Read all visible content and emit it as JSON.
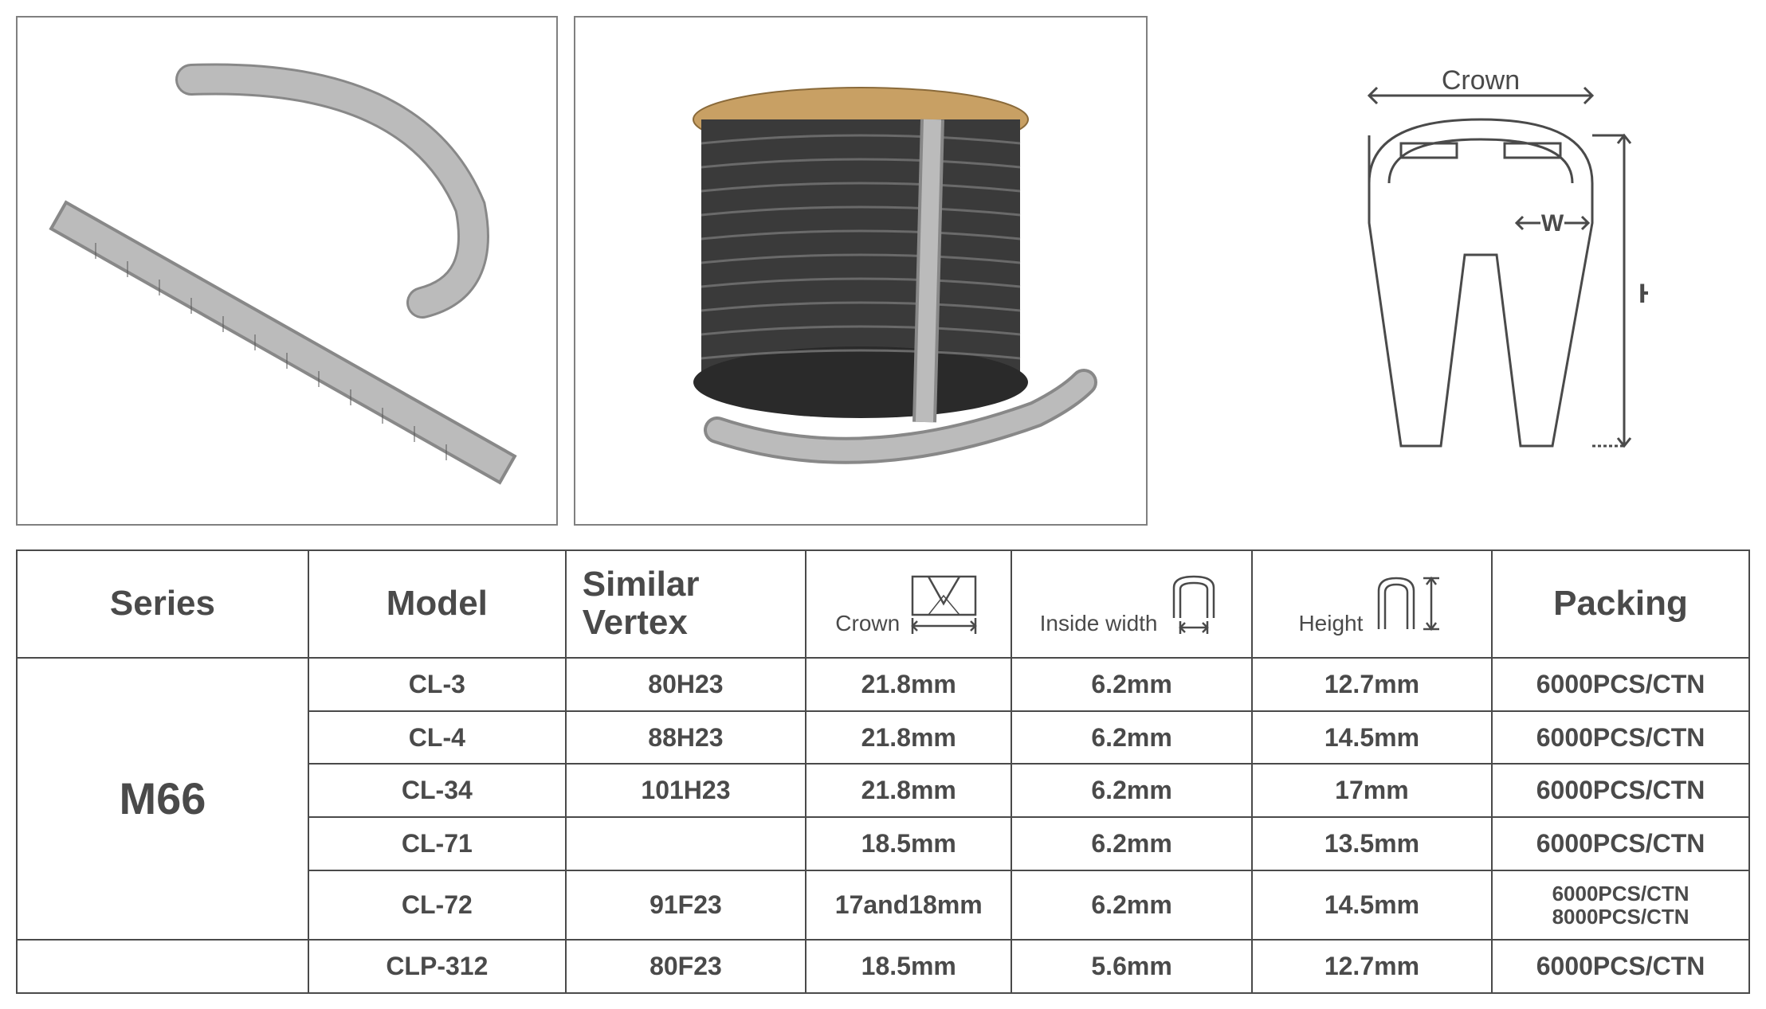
{
  "diagram": {
    "crown_label": "Crown",
    "w_label": "W",
    "h_label": "H",
    "line_color": "#4a4a4a",
    "line_width": 3
  },
  "header_icons": {
    "crown_label": "Crown",
    "inside_width_label": "Inside width",
    "height_label": "Height"
  },
  "table": {
    "columns": [
      "Series",
      "Model",
      "Similar Vertex",
      "Crown",
      "Inside width",
      "Height",
      "Packing"
    ],
    "series_groups": [
      {
        "series": "M66",
        "rows": [
          {
            "model": "CL-3",
            "vertex": "80H23",
            "crown": "21.8mm",
            "iw": "6.2mm",
            "height": "12.7mm",
            "packing": "6000PCS/CTN"
          },
          {
            "model": "CL-4",
            "vertex": "88H23",
            "crown": "21.8mm",
            "iw": "6.2mm",
            "height": "14.5mm",
            "packing": "6000PCS/CTN"
          },
          {
            "model": "CL-34",
            "vertex": "101H23",
            "crown": "21.8mm",
            "iw": "6.2mm",
            "height": "17mm",
            "packing": "6000PCS/CTN"
          },
          {
            "model": "CL-71",
            "vertex": "",
            "crown": "18.5mm",
            "iw": "6.2mm",
            "height": "13.5mm",
            "packing": "6000PCS/CTN"
          },
          {
            "model": "CL-72",
            "vertex": "91F23",
            "crown": "17and18mm",
            "iw": "6.2mm",
            "height": "14.5mm",
            "packing": "6000PCS/CTN\n8000PCS/CTN"
          }
        ]
      },
      {
        "series": "",
        "rows": [
          {
            "model": "CLP-312",
            "vertex": "80F23",
            "crown": "18.5mm",
            "iw": "5.6mm",
            "height": "12.7mm",
            "packing": "6000PCS/CTN"
          }
        ]
      }
    ]
  },
  "colors": {
    "border": "#4a4a4a",
    "text": "#4a4a4a",
    "bg": "#ffffff"
  }
}
